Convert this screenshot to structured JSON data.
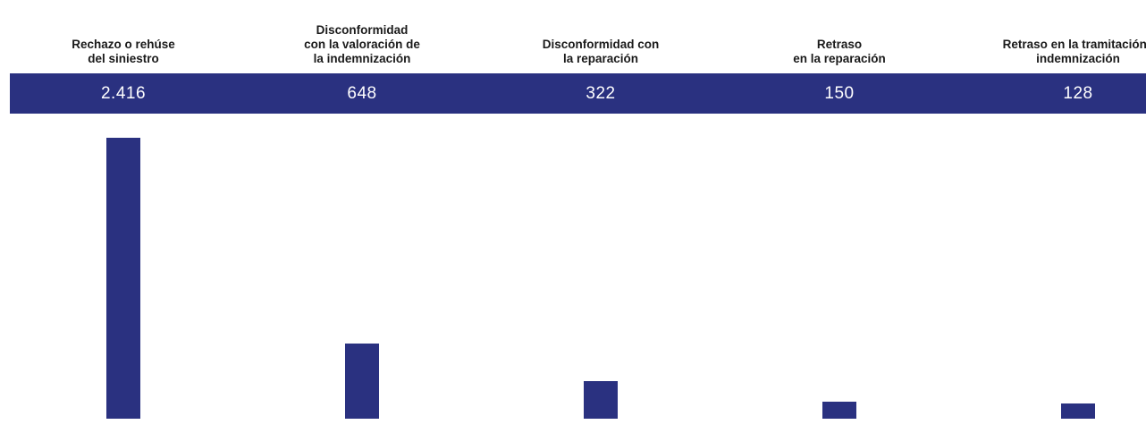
{
  "chart_data": {
    "type": "bar",
    "categories": [
      "Rechazo o rehúse\ndel siniestro",
      "Disconformidad\ncon la valoración de\nla indemnización",
      "Disconformidad con\nla reparación",
      "Retraso\nen la reparación",
      "Retraso en la tramitación /\nindemnización"
    ],
    "values": [
      2416,
      648,
      322,
      150,
      128
    ],
    "value_labels": [
      "2.416",
      "648",
      "322",
      "150",
      "128"
    ],
    "title": "",
    "xlabel": "",
    "ylabel": "",
    "ylim": [
      0,
      2416
    ],
    "grid": false,
    "legend": "none",
    "colors": {
      "bar": "#2a3180",
      "band": "#2a3180",
      "value_text": "#ffffff",
      "category_text": "#1a1a1a"
    }
  }
}
